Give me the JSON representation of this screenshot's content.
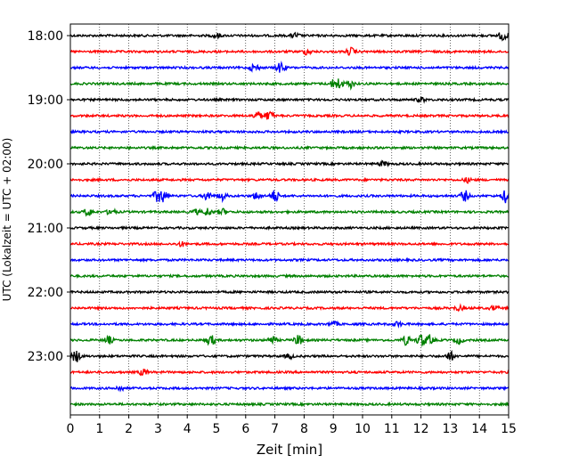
{
  "chart_data": {
    "type": "line",
    "title": "",
    "xlabel": "Zeit  [min]",
    "ylabel": "UTC (Lokalzeit = UTC + 02:00)",
    "xlim": [
      0,
      15
    ],
    "x_ticks": [
      "0",
      "1",
      "2",
      "3",
      "4",
      "5",
      "6",
      "7",
      "8",
      "9",
      "10",
      "11",
      "12",
      "13",
      "14",
      "15"
    ],
    "y_tick_labels": [
      "18:00",
      "19:00",
      "20:00",
      "21:00",
      "22:00",
      "23:00"
    ],
    "grid": "vertical dotted",
    "trace_interval_minutes": 15,
    "trace_colors_cycle": [
      "#000000",
      "#ff0000",
      "#0000ff",
      "#008000"
    ],
    "series": [
      {
        "start": "18:00",
        "color": "#000000",
        "bursts": [
          [
            5.0,
            0.3
          ],
          [
            7.7,
            0.3
          ],
          [
            14.8,
            0.6
          ]
        ]
      },
      {
        "start": "18:15",
        "color": "#ff0000",
        "bursts": [
          [
            8.1,
            0.4
          ],
          [
            9.6,
            0.5
          ]
        ]
      },
      {
        "start": "18:30",
        "color": "#0000ff",
        "bursts": [
          [
            6.3,
            0.5
          ],
          [
            7.2,
            0.7
          ]
        ]
      },
      {
        "start": "18:45",
        "color": "#008000",
        "bursts": [
          [
            9.0,
            0.5
          ],
          [
            9.2,
            0.6
          ],
          [
            9.6,
            0.5
          ]
        ]
      },
      {
        "start": "19:00",
        "color": "#000000",
        "bursts": [
          [
            12.0,
            0.3
          ]
        ]
      },
      {
        "start": "19:15",
        "color": "#ff0000",
        "bursts": [
          [
            6.4,
            0.5
          ],
          [
            6.8,
            0.6
          ]
        ]
      },
      {
        "start": "19:30",
        "color": "#0000ff",
        "bursts": []
      },
      {
        "start": "19:45",
        "color": "#008000",
        "bursts": []
      },
      {
        "start": "20:00",
        "color": "#000000",
        "bursts": [
          [
            10.7,
            0.3
          ]
        ]
      },
      {
        "start": "20:15",
        "color": "#ff0000",
        "bursts": [
          [
            13.6,
            0.3
          ]
        ]
      },
      {
        "start": "20:30",
        "color": "#0000ff",
        "bursts": [
          [
            3.0,
            0.8
          ],
          [
            3.2,
            0.6
          ],
          [
            4.7,
            0.6
          ],
          [
            5.2,
            0.5
          ],
          [
            6.4,
            0.5
          ],
          [
            7.0,
            0.8
          ],
          [
            13.5,
            0.7
          ],
          [
            14.9,
            0.8
          ]
        ]
      },
      {
        "start": "20:45",
        "color": "#008000",
        "bursts": [
          [
            0.6,
            0.5
          ],
          [
            1.4,
            0.4
          ],
          [
            4.3,
            0.3
          ],
          [
            4.7,
            0.5
          ],
          [
            5.2,
            0.4
          ]
        ]
      },
      {
        "start": "21:00",
        "color": "#000000",
        "bursts": []
      },
      {
        "start": "21:15",
        "color": "#ff0000",
        "bursts": [
          [
            3.8,
            0.3
          ]
        ]
      },
      {
        "start": "21:30",
        "color": "#0000ff",
        "bursts": []
      },
      {
        "start": "21:45",
        "color": "#008000",
        "bursts": []
      },
      {
        "start": "22:00",
        "color": "#000000",
        "bursts": []
      },
      {
        "start": "22:15",
        "color": "#ff0000",
        "bursts": [
          [
            13.3,
            0.3
          ],
          [
            14.5,
            0.3
          ]
        ]
      },
      {
        "start": "22:30",
        "color": "#0000ff",
        "bursts": [
          [
            9.0,
            0.3
          ],
          [
            11.2,
            0.3
          ]
        ]
      },
      {
        "start": "22:45",
        "color": "#008000",
        "bursts": [
          [
            1.3,
            0.5
          ],
          [
            4.8,
            0.7
          ],
          [
            6.9,
            0.5
          ],
          [
            7.8,
            0.6
          ],
          [
            11.5,
            0.6
          ],
          [
            12.0,
            0.8
          ],
          [
            12.3,
            0.6
          ],
          [
            13.3,
            0.4
          ]
        ]
      },
      {
        "start": "23:00",
        "color": "#000000",
        "bursts": [
          [
            0.2,
            0.8
          ],
          [
            7.5,
            0.3
          ],
          [
            13.0,
            0.6
          ]
        ]
      },
      {
        "start": "23:15",
        "color": "#ff0000",
        "bursts": [
          [
            2.5,
            0.4
          ]
        ]
      },
      {
        "start": "23:30",
        "color": "#0000ff",
        "bursts": [
          [
            1.7,
            0.3
          ]
        ]
      },
      {
        "start": "23:45",
        "color": "#008000",
        "bursts": []
      }
    ]
  }
}
